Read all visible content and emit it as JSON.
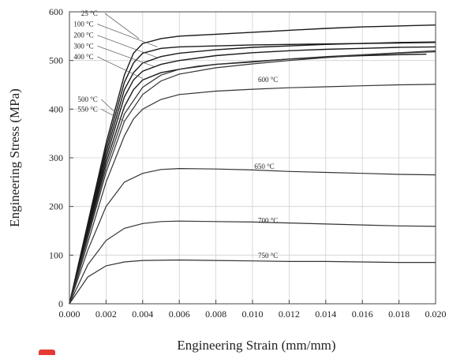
{
  "chart_data": {
    "type": "line",
    "title": "",
    "xlabel": "Engineering Strain (mm/mm)",
    "ylabel": "Engineering Stress (MPa)",
    "xlim": [
      0,
      0.02
    ],
    "ylim": [
      0,
      600
    ],
    "xticks": [
      "0.000",
      "0.002",
      "0.004",
      "0.006",
      "0.008",
      "0.010",
      "0.012",
      "0.014",
      "0.016",
      "0.018",
      "0.020"
    ],
    "yticks": [
      "0",
      "100",
      "200",
      "300",
      "400",
      "500",
      "600"
    ],
    "grid": true,
    "legend": "none",
    "series": [
      {
        "name": "25 °C",
        "points": [
          [
            0,
            0
          ],
          [
            0.001,
            165
          ],
          [
            0.002,
            330
          ],
          [
            0.003,
            470
          ],
          [
            0.0035,
            515
          ],
          [
            0.004,
            535
          ],
          [
            0.005,
            545
          ],
          [
            0.006,
            550
          ],
          [
            0.008,
            554
          ],
          [
            0.01,
            558
          ],
          [
            0.012,
            562
          ],
          [
            0.014,
            566
          ],
          [
            0.016,
            569
          ],
          [
            0.018,
            571
          ],
          [
            0.02,
            573
          ]
        ]
      },
      {
        "name": "100 °C",
        "points": [
          [
            0,
            0
          ],
          [
            0.001,
            160
          ],
          [
            0.002,
            320
          ],
          [
            0.003,
            455
          ],
          [
            0.0035,
            495
          ],
          [
            0.004,
            515
          ],
          [
            0.005,
            525
          ],
          [
            0.006,
            528
          ],
          [
            0.008,
            530
          ],
          [
            0.01,
            532
          ],
          [
            0.012,
            533
          ],
          [
            0.014,
            534
          ],
          [
            0.016,
            535
          ],
          [
            0.018,
            536
          ],
          [
            0.02,
            537
          ]
        ]
      },
      {
        "name": "200 °C",
        "points": [
          [
            0,
            0
          ],
          [
            0.001,
            155
          ],
          [
            0.002,
            310
          ],
          [
            0.003,
            440
          ],
          [
            0.0035,
            475
          ],
          [
            0.004,
            495
          ],
          [
            0.005,
            508
          ],
          [
            0.006,
            515
          ],
          [
            0.008,
            522
          ],
          [
            0.01,
            527
          ],
          [
            0.012,
            530
          ],
          [
            0.014,
            533
          ],
          [
            0.016,
            535
          ],
          [
            0.018,
            537
          ],
          [
            0.02,
            538
          ]
        ]
      },
      {
        "name": "300 °C",
        "points": [
          [
            0,
            0
          ],
          [
            0.001,
            150
          ],
          [
            0.002,
            300
          ],
          [
            0.003,
            425
          ],
          [
            0.0035,
            460
          ],
          [
            0.004,
            478
          ],
          [
            0.005,
            492
          ],
          [
            0.006,
            500
          ],
          [
            0.008,
            510
          ],
          [
            0.01,
            516
          ],
          [
            0.012,
            520
          ],
          [
            0.014,
            523
          ],
          [
            0.016,
            525
          ],
          [
            0.018,
            527
          ],
          [
            0.02,
            528
          ]
        ]
      },
      {
        "name": "400 °C",
        "points": [
          [
            0,
            0
          ],
          [
            0.001,
            145
          ],
          [
            0.002,
            290
          ],
          [
            0.003,
            405
          ],
          [
            0.0035,
            440
          ],
          [
            0.004,
            460
          ],
          [
            0.005,
            475
          ],
          [
            0.006,
            482
          ],
          [
            0.007,
            488
          ],
          [
            0.008,
            492
          ],
          [
            0.01,
            497
          ],
          [
            0.012,
            503
          ],
          [
            0.014,
            507
          ],
          [
            0.016,
            510
          ],
          [
            0.018,
            512
          ],
          [
            0.0195,
            513
          ]
        ]
      },
      {
        "name": "500 °C",
        "points": [
          [
            0,
            0
          ],
          [
            0.001,
            140
          ],
          [
            0.002,
            280
          ],
          [
            0.003,
            390
          ],
          [
            0.004,
            445
          ],
          [
            0.005,
            470
          ],
          [
            0.006,
            482
          ],
          [
            0.008,
            492
          ],
          [
            0.01,
            498
          ],
          [
            0.012,
            503
          ],
          [
            0.014,
            508
          ],
          [
            0.016,
            512
          ],
          [
            0.018,
            516
          ],
          [
            0.02,
            520
          ]
        ]
      },
      {
        "name": "550 °C",
        "points": [
          [
            0,
            0
          ],
          [
            0.001,
            135
          ],
          [
            0.002,
            270
          ],
          [
            0.003,
            375
          ],
          [
            0.004,
            430
          ],
          [
            0.005,
            458
          ],
          [
            0.006,
            472
          ],
          [
            0.008,
            485
          ],
          [
            0.01,
            493
          ],
          [
            0.012,
            500
          ],
          [
            0.014,
            506
          ],
          [
            0.016,
            511
          ],
          [
            0.018,
            515
          ],
          [
            0.02,
            518
          ]
        ]
      },
      {
        "name": "600 °C",
        "points": [
          [
            0,
            0
          ],
          [
            0.001,
            125
          ],
          [
            0.002,
            250
          ],
          [
            0.003,
            345
          ],
          [
            0.0035,
            380
          ],
          [
            0.004,
            400
          ],
          [
            0.005,
            420
          ],
          [
            0.006,
            430
          ],
          [
            0.008,
            437
          ],
          [
            0.01,
            441
          ],
          [
            0.012,
            444
          ],
          [
            0.014,
            446
          ],
          [
            0.016,
            448
          ],
          [
            0.018,
            450
          ],
          [
            0.02,
            451
          ]
        ]
      },
      {
        "name": "650 °C",
        "points": [
          [
            0,
            0
          ],
          [
            0.001,
            110
          ],
          [
            0.002,
            200
          ],
          [
            0.003,
            250
          ],
          [
            0.004,
            268
          ],
          [
            0.005,
            276
          ],
          [
            0.006,
            278
          ],
          [
            0.008,
            277
          ],
          [
            0.01,
            275
          ],
          [
            0.012,
            272
          ],
          [
            0.014,
            270
          ],
          [
            0.016,
            268
          ],
          [
            0.018,
            266
          ],
          [
            0.02,
            265
          ]
        ]
      },
      {
        "name": "700 °C",
        "points": [
          [
            0,
            0
          ],
          [
            0.001,
            80
          ],
          [
            0.002,
            130
          ],
          [
            0.003,
            155
          ],
          [
            0.004,
            165
          ],
          [
            0.005,
            169
          ],
          [
            0.006,
            170
          ],
          [
            0.008,
            169
          ],
          [
            0.01,
            168
          ],
          [
            0.012,
            166
          ],
          [
            0.014,
            164
          ],
          [
            0.016,
            162
          ],
          [
            0.018,
            160
          ],
          [
            0.02,
            159
          ]
        ]
      },
      {
        "name": "750 °C",
        "points": [
          [
            0,
            0
          ],
          [
            0.001,
            55
          ],
          [
            0.002,
            78
          ],
          [
            0.003,
            86
          ],
          [
            0.004,
            89
          ],
          [
            0.006,
            90
          ],
          [
            0.008,
            89
          ],
          [
            0.01,
            88
          ],
          [
            0.012,
            87
          ],
          [
            0.014,
            87
          ],
          [
            0.016,
            86
          ],
          [
            0.018,
            85
          ],
          [
            0.02,
            85
          ]
        ]
      }
    ],
    "annotations": [
      {
        "text": "25 °C",
        "x": 0.00064,
        "y": 592,
        "target": [
          0.0038,
          545
        ]
      },
      {
        "text": "100 °C",
        "x": 0.00023,
        "y": 570,
        "target": [
          0.0048,
          528
        ]
      },
      {
        "text": "200 °C",
        "x": 0.00023,
        "y": 547,
        "target": [
          0.0048,
          506
        ]
      },
      {
        "text": "300 °C",
        "x": 0.00023,
        "y": 525,
        "target": [
          0.0046,
          488
        ]
      },
      {
        "text": "400 °C",
        "x": 0.00023,
        "y": 503,
        "target": [
          0.004,
          463
        ]
      },
      {
        "text": "500 °C",
        "x": 0.00045,
        "y": 415,
        "target": [
          0.0026,
          390
        ]
      },
      {
        "text": "550 °C",
        "x": 0.00045,
        "y": 395,
        "target": [
          0.003,
          375
        ]
      },
      {
        "text": "600 °C",
        "x": 0.0103,
        "y": 456
      },
      {
        "text": "650 °C",
        "x": 0.0101,
        "y": 277
      },
      {
        "text": "700 °C",
        "x": 0.0103,
        "y": 166
      },
      {
        "text": "750 °C",
        "x": 0.0103,
        "y": 94
      }
    ]
  }
}
